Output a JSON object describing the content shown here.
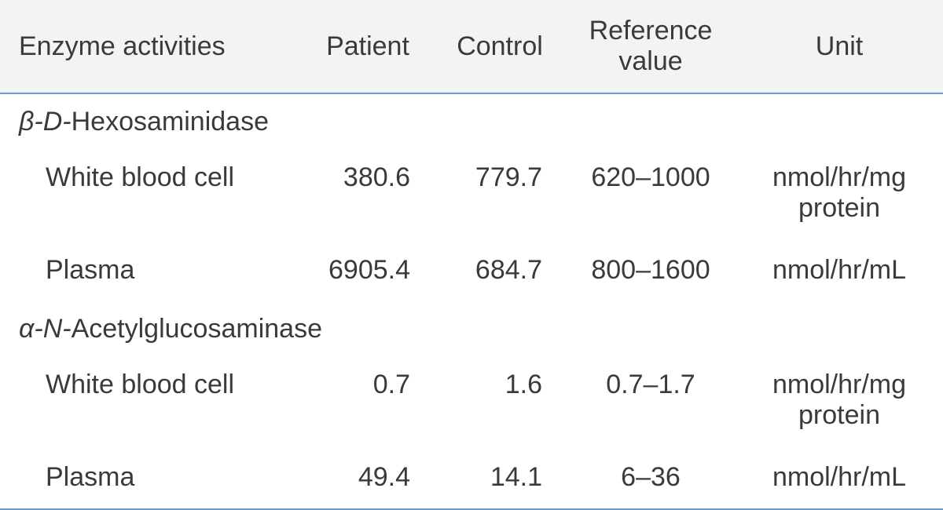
{
  "table": {
    "header_bg": "#f1f3f5",
    "rule_color": "#6b9bd1",
    "text_color": "#3a3a3a",
    "font_size_pt": 26,
    "columns": [
      {
        "key": "enzyme",
        "label": "Enzyme activities",
        "align": "left"
      },
      {
        "key": "patient",
        "label": "Patient",
        "align": "center"
      },
      {
        "key": "control",
        "label": "Control",
        "align": "center"
      },
      {
        "key": "refvalue",
        "label": "Reference value",
        "align": "center"
      },
      {
        "key": "unit",
        "label": "Unit",
        "align": "center"
      }
    ],
    "sections": [
      {
        "title_prefix_italic": "β-D-",
        "title_rest": "Hexosaminidase",
        "rows": [
          {
            "label": "White blood cell",
            "patient": "380.6",
            "control": "779.7",
            "refvalue": "620–1000",
            "unit_line1": "nmol/hr/mg",
            "unit_line2": "protein"
          },
          {
            "label": "Plasma",
            "patient": "6905.4",
            "control": "684.7",
            "refvalue": "800–1600",
            "unit_line1": "nmol/hr/mL",
            "unit_line2": ""
          }
        ]
      },
      {
        "title_prefix_italic": "α-N-",
        "title_rest": "Acetylglucosaminase",
        "rows": [
          {
            "label": "White blood cell",
            "patient": "0.7",
            "control": "1.6",
            "refvalue": "0.7–1.7",
            "unit_line1": "nmol/hr/mg",
            "unit_line2": "protein"
          },
          {
            "label": "Plasma",
            "patient": "49.4",
            "control": "14.1",
            "refvalue": "6–36",
            "unit_line1": "nmol/hr/mL",
            "unit_line2": ""
          }
        ]
      }
    ]
  }
}
